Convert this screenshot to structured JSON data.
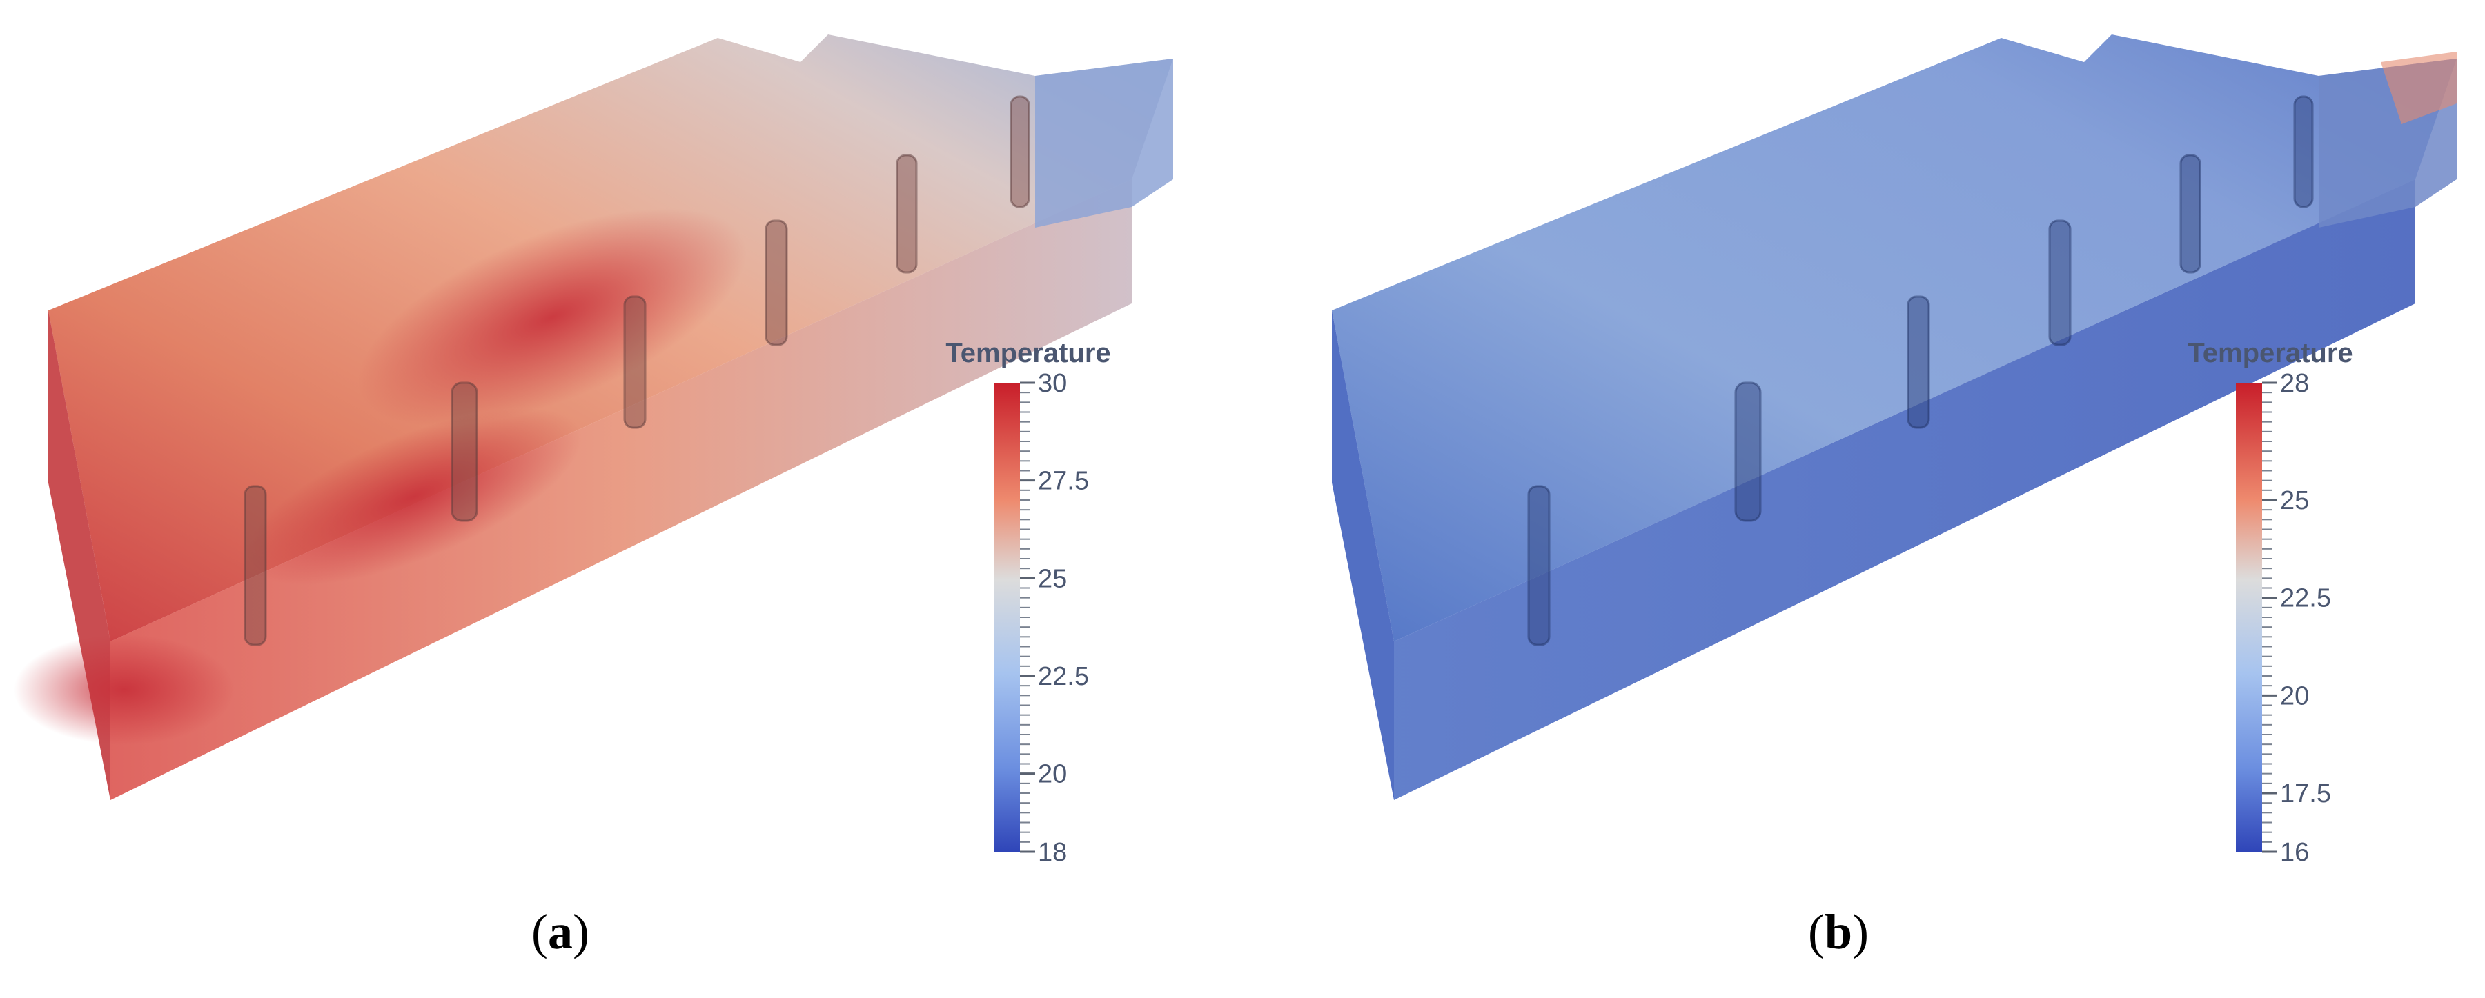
{
  "figure": {
    "panels": [
      {
        "id": "a",
        "caption_label": "a",
        "colorbar": {
          "title": "Temperature",
          "min": 18,
          "max": 30,
          "ticks": [
            "30",
            "27.5",
            "25",
            "22.5",
            "20",
            "18"
          ],
          "tick_values": [
            30,
            27.5,
            25,
            22.5,
            20,
            18
          ]
        },
        "dominant_field": "warm",
        "colors": {
          "low": "#3a4fc1",
          "mid": "#dddddd",
          "high": "#c81e2a"
        }
      },
      {
        "id": "b",
        "caption_label": "b",
        "colorbar": {
          "title": "Temperature",
          "min": 16,
          "max": 28,
          "ticks": [
            "28",
            "25",
            "22.5",
            "20",
            "17.5",
            "16"
          ],
          "tick_values": [
            28,
            25,
            22.5,
            20,
            17.5,
            16
          ]
        },
        "dominant_field": "cool",
        "colors": {
          "low": "#3a4fc1",
          "mid": "#dddddd",
          "high": "#c81e2a"
        }
      }
    ]
  }
}
